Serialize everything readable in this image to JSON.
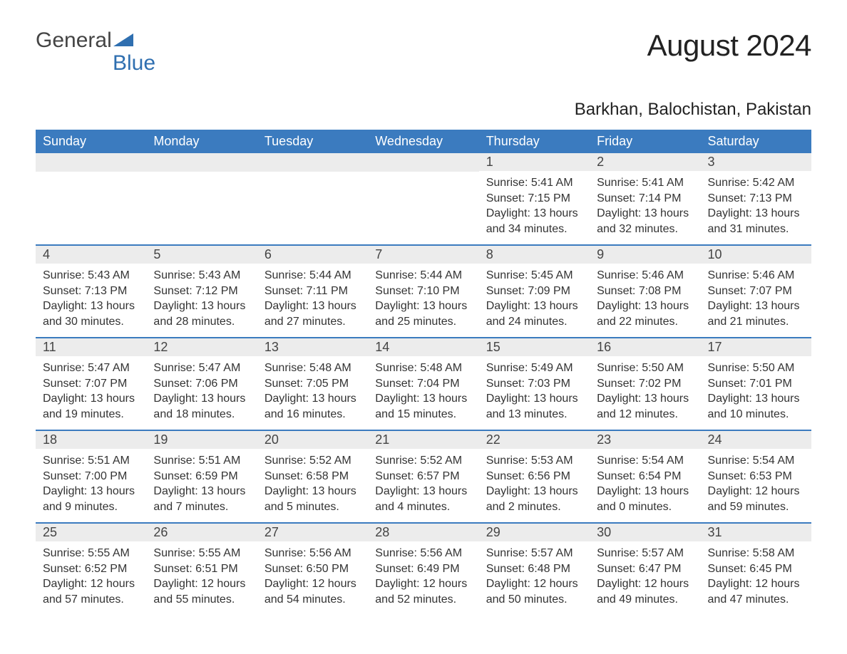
{
  "logo": {
    "text_general": "General",
    "text_blue": "Blue"
  },
  "title": "August 2024",
  "location": "Barkhan, Balochistan, Pakistan",
  "colors": {
    "header_bg": "#3b7bbf",
    "header_text": "#ffffff",
    "daynum_bg": "#ececec",
    "text": "#333333",
    "rule": "#3b7bbf",
    "logo_blue": "#2f6fb0"
  },
  "day_names": [
    "Sunday",
    "Monday",
    "Tuesday",
    "Wednesday",
    "Thursday",
    "Friday",
    "Saturday"
  ],
  "weeks": [
    [
      null,
      null,
      null,
      null,
      {
        "n": "1",
        "sr": "5:41 AM",
        "ss": "7:15 PM",
        "dl": "13 hours and 34 minutes."
      },
      {
        "n": "2",
        "sr": "5:41 AM",
        "ss": "7:14 PM",
        "dl": "13 hours and 32 minutes."
      },
      {
        "n": "3",
        "sr": "5:42 AM",
        "ss": "7:13 PM",
        "dl": "13 hours and 31 minutes."
      }
    ],
    [
      {
        "n": "4",
        "sr": "5:43 AM",
        "ss": "7:13 PM",
        "dl": "13 hours and 30 minutes."
      },
      {
        "n": "5",
        "sr": "5:43 AM",
        "ss": "7:12 PM",
        "dl": "13 hours and 28 minutes."
      },
      {
        "n": "6",
        "sr": "5:44 AM",
        "ss": "7:11 PM",
        "dl": "13 hours and 27 minutes."
      },
      {
        "n": "7",
        "sr": "5:44 AM",
        "ss": "7:10 PM",
        "dl": "13 hours and 25 minutes."
      },
      {
        "n": "8",
        "sr": "5:45 AM",
        "ss": "7:09 PM",
        "dl": "13 hours and 24 minutes."
      },
      {
        "n": "9",
        "sr": "5:46 AM",
        "ss": "7:08 PM",
        "dl": "13 hours and 22 minutes."
      },
      {
        "n": "10",
        "sr": "5:46 AM",
        "ss": "7:07 PM",
        "dl": "13 hours and 21 minutes."
      }
    ],
    [
      {
        "n": "11",
        "sr": "5:47 AM",
        "ss": "7:07 PM",
        "dl": "13 hours and 19 minutes."
      },
      {
        "n": "12",
        "sr": "5:47 AM",
        "ss": "7:06 PM",
        "dl": "13 hours and 18 minutes."
      },
      {
        "n": "13",
        "sr": "5:48 AM",
        "ss": "7:05 PM",
        "dl": "13 hours and 16 minutes."
      },
      {
        "n": "14",
        "sr": "5:48 AM",
        "ss": "7:04 PM",
        "dl": "13 hours and 15 minutes."
      },
      {
        "n": "15",
        "sr": "5:49 AM",
        "ss": "7:03 PM",
        "dl": "13 hours and 13 minutes."
      },
      {
        "n": "16",
        "sr": "5:50 AM",
        "ss": "7:02 PM",
        "dl": "13 hours and 12 minutes."
      },
      {
        "n": "17",
        "sr": "5:50 AM",
        "ss": "7:01 PM",
        "dl": "13 hours and 10 minutes."
      }
    ],
    [
      {
        "n": "18",
        "sr": "5:51 AM",
        "ss": "7:00 PM",
        "dl": "13 hours and 9 minutes."
      },
      {
        "n": "19",
        "sr": "5:51 AM",
        "ss": "6:59 PM",
        "dl": "13 hours and 7 minutes."
      },
      {
        "n": "20",
        "sr": "5:52 AM",
        "ss": "6:58 PM",
        "dl": "13 hours and 5 minutes."
      },
      {
        "n": "21",
        "sr": "5:52 AM",
        "ss": "6:57 PM",
        "dl": "13 hours and 4 minutes."
      },
      {
        "n": "22",
        "sr": "5:53 AM",
        "ss": "6:56 PM",
        "dl": "13 hours and 2 minutes."
      },
      {
        "n": "23",
        "sr": "5:54 AM",
        "ss": "6:54 PM",
        "dl": "13 hours and 0 minutes."
      },
      {
        "n": "24",
        "sr": "5:54 AM",
        "ss": "6:53 PM",
        "dl": "12 hours and 59 minutes."
      }
    ],
    [
      {
        "n": "25",
        "sr": "5:55 AM",
        "ss": "6:52 PM",
        "dl": "12 hours and 57 minutes."
      },
      {
        "n": "26",
        "sr": "5:55 AM",
        "ss": "6:51 PM",
        "dl": "12 hours and 55 minutes."
      },
      {
        "n": "27",
        "sr": "5:56 AM",
        "ss": "6:50 PM",
        "dl": "12 hours and 54 minutes."
      },
      {
        "n": "28",
        "sr": "5:56 AM",
        "ss": "6:49 PM",
        "dl": "12 hours and 52 minutes."
      },
      {
        "n": "29",
        "sr": "5:57 AM",
        "ss": "6:48 PM",
        "dl": "12 hours and 50 minutes."
      },
      {
        "n": "30",
        "sr": "5:57 AM",
        "ss": "6:47 PM",
        "dl": "12 hours and 49 minutes."
      },
      {
        "n": "31",
        "sr": "5:58 AM",
        "ss": "6:45 PM",
        "dl": "12 hours and 47 minutes."
      }
    ]
  ],
  "labels": {
    "sunrise": "Sunrise: ",
    "sunset": "Sunset: ",
    "daylight": "Daylight: "
  }
}
